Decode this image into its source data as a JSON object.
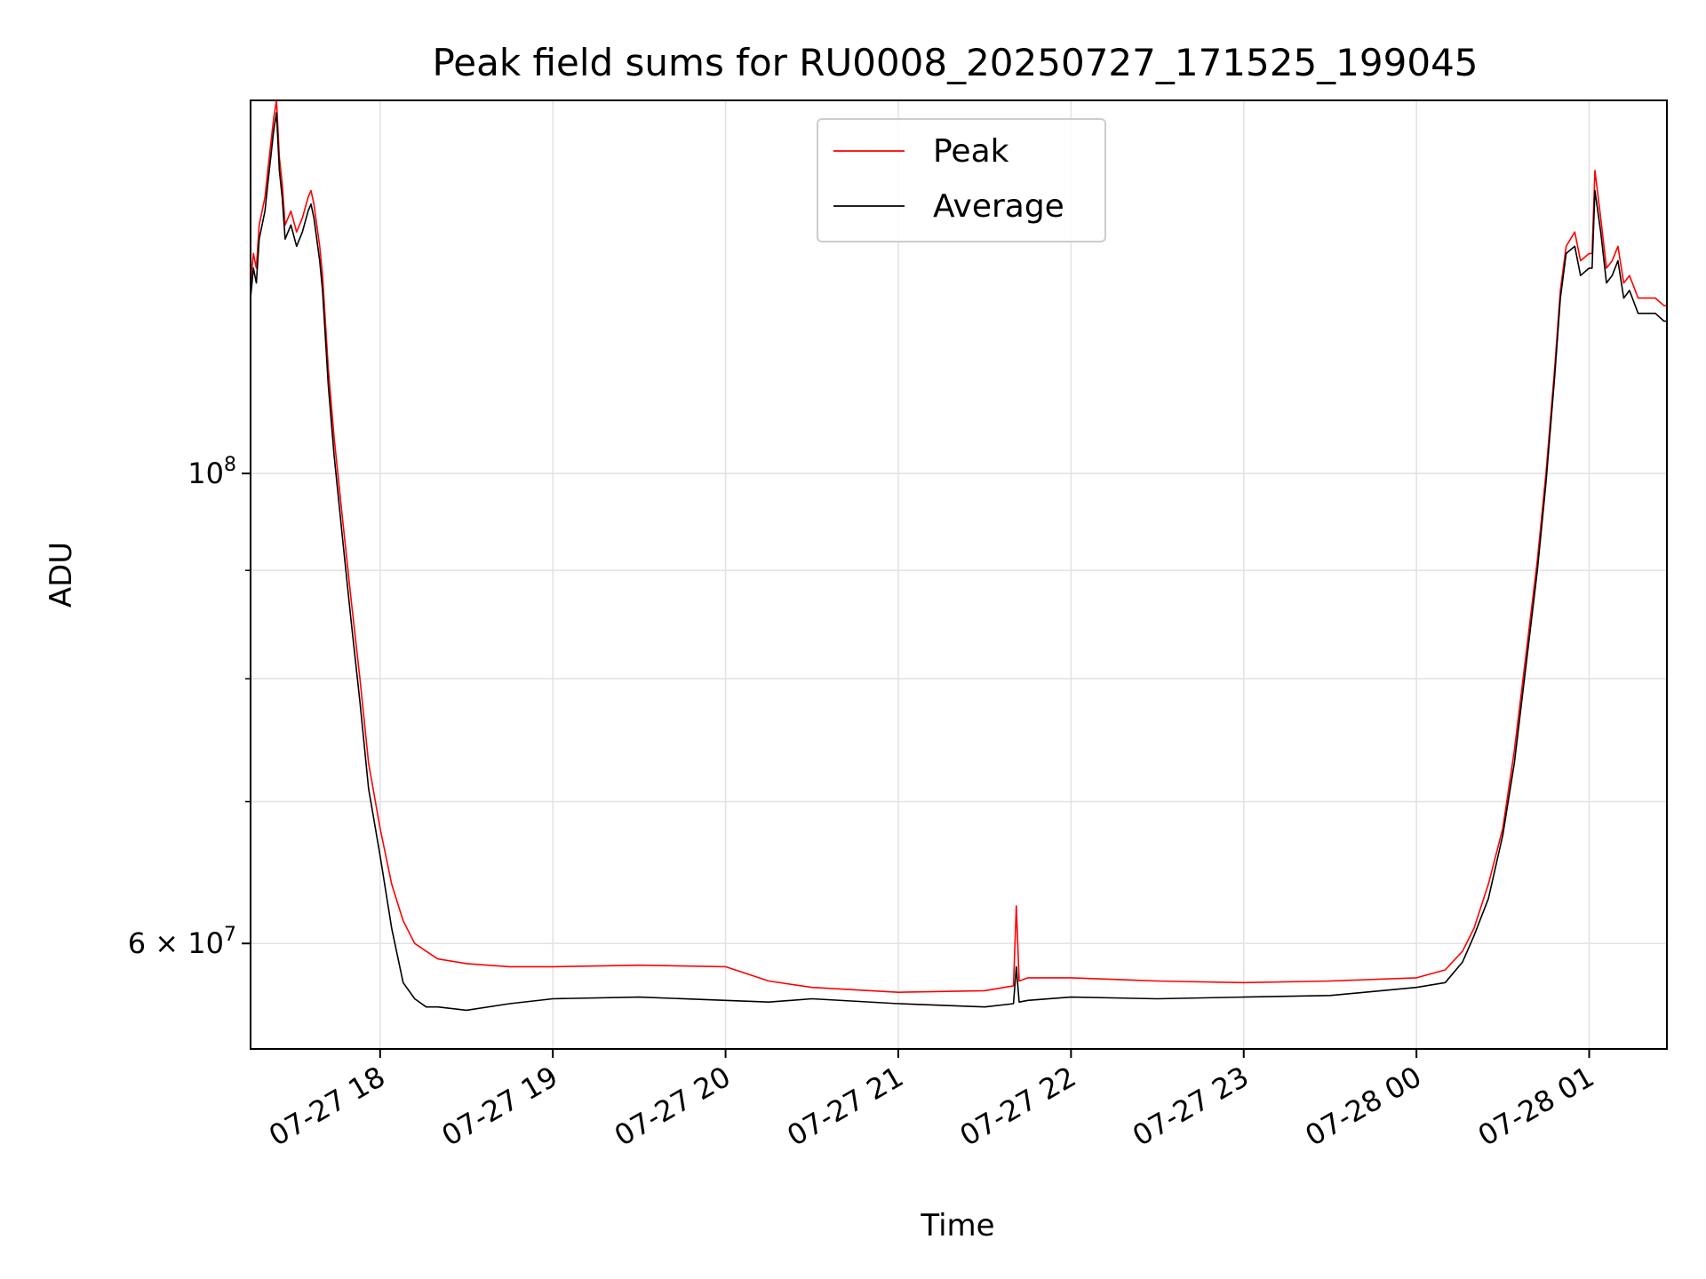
{
  "chart_data": {
    "type": "line",
    "title": "Peak field sums for RU0008_20250727_171525_199045",
    "xlabel": "Time",
    "ylabel": "ADU",
    "yscale": "log",
    "ylim": [
      53500000,
      150000000
    ],
    "xlim": [
      "2025-07-27 17:15",
      "2025-07-28 01:27"
    ],
    "grid": true,
    "legend": "upper center",
    "x_ticks": [
      {
        "value": "2025-07-27 18:00",
        "label": "07-27 18"
      },
      {
        "value": "2025-07-27 19:00",
        "label": "07-27 19"
      },
      {
        "value": "2025-07-27 20:00",
        "label": "07-27 20"
      },
      {
        "value": "2025-07-27 21:00",
        "label": "07-27 21"
      },
      {
        "value": "2025-07-27 22:00",
        "label": "07-27 22"
      },
      {
        "value": "2025-07-27 23:00",
        "label": "07-27 23"
      },
      {
        "value": "2025-07-28 00:00",
        "label": "07-28 00"
      },
      {
        "value": "2025-07-28 01:00",
        "label": "07-28 01"
      }
    ],
    "y_ticks": [
      {
        "value": 60000000,
        "mantissa": "6",
        "exponent": "7"
      },
      {
        "value": 100000000,
        "mantissa": "",
        "exponent": "8"
      }
    ],
    "y_minor_ticks": [
      70000000,
      80000000,
      90000000
    ],
    "series": [
      {
        "name": "Peak",
        "color": "#ff0000",
        "x": [
          "2025-07-27 17:15",
          "2025-07-27 17:16",
          "2025-07-27 17:17",
          "2025-07-27 17:18",
          "2025-07-27 17:20",
          "2025-07-27 17:21",
          "2025-07-27 17:23",
          "2025-07-27 17:24",
          "2025-07-27 17:25",
          "2025-07-27 17:26",
          "2025-07-27 17:27",
          "2025-07-27 17:29",
          "2025-07-27 17:31",
          "2025-07-27 17:33",
          "2025-07-27 17:35",
          "2025-07-27 17:36",
          "2025-07-27 17:37",
          "2025-07-27 17:39",
          "2025-07-27 17:40",
          "2025-07-27 17:42",
          "2025-07-27 17:44",
          "2025-07-27 17:47",
          "2025-07-27 17:50",
          "2025-07-27 17:53",
          "2025-07-27 17:56",
          "2025-07-27 18:00",
          "2025-07-27 18:04",
          "2025-07-27 18:08",
          "2025-07-27 18:12",
          "2025-07-27 18:16",
          "2025-07-27 18:20",
          "2025-07-27 18:30",
          "2025-07-27 18:45",
          "2025-07-27 19:00",
          "2025-07-27 19:30",
          "2025-07-27 20:00",
          "2025-07-27 20:15",
          "2025-07-27 20:30",
          "2025-07-27 21:00",
          "2025-07-27 21:30",
          "2025-07-27 21:40",
          "2025-07-27 21:41",
          "2025-07-27 21:42",
          "2025-07-27 21:45",
          "2025-07-27 22:00",
          "2025-07-27 22:30",
          "2025-07-27 23:00",
          "2025-07-27 23:30",
          "2025-07-28 00:00",
          "2025-07-28 00:10",
          "2025-07-28 00:16",
          "2025-07-28 00:20",
          "2025-07-28 00:25",
          "2025-07-28 00:30",
          "2025-07-28 00:34",
          "2025-07-28 00:38",
          "2025-07-28 00:42",
          "2025-07-28 00:45",
          "2025-07-28 00:48",
          "2025-07-28 00:50",
          "2025-07-28 00:52",
          "2025-07-28 00:55",
          "2025-07-28 00:57",
          "2025-07-28 01:00",
          "2025-07-28 01:01",
          "2025-07-28 01:02",
          "2025-07-28 01:04",
          "2025-07-28 01:06",
          "2025-07-28 01:08",
          "2025-07-28 01:10",
          "2025-07-28 01:12",
          "2025-07-28 01:14",
          "2025-07-28 01:17",
          "2025-07-28 01:20",
          "2025-07-28 01:23",
          "2025-07-28 01:26",
          "2025-07-28 01:27"
        ],
        "y": [
          123000000,
          127000000,
          125000000,
          131000000,
          135000000,
          139000000,
          147000000,
          150000000,
          141000000,
          137000000,
          131000000,
          133000000,
          130000000,
          132000000,
          135000000,
          136000000,
          134000000,
          128000000,
          124000000,
          112000000,
          104000000,
          95000000,
          87000000,
          80000000,
          73000000,
          68000000,
          64000000,
          61500000,
          60000000,
          59500000,
          59000000,
          58700000,
          58500000,
          58500000,
          58600000,
          58500000,
          57600000,
          57200000,
          56900000,
          57000000,
          57300000,
          62500000,
          57600000,
          57800000,
          57800000,
          57600000,
          57500000,
          57600000,
          57800000,
          58300000,
          59500000,
          61000000,
          64000000,
          68000000,
          74000000,
          82000000,
          91000000,
          100000000,
          112000000,
          122000000,
          128000000,
          130000000,
          126000000,
          127000000,
          127000000,
          139000000,
          132000000,
          125000000,
          126000000,
          128000000,
          123000000,
          124000000,
          121000000,
          121000000,
          121000000,
          120000000,
          120000000
        ]
      },
      {
        "name": "Average",
        "color": "#000000",
        "x": [
          "2025-07-27 17:15",
          "2025-07-27 17:16",
          "2025-07-27 17:17",
          "2025-07-27 17:18",
          "2025-07-27 17:20",
          "2025-07-27 17:21",
          "2025-07-27 17:23",
          "2025-07-27 17:24",
          "2025-07-27 17:25",
          "2025-07-27 17:26",
          "2025-07-27 17:27",
          "2025-07-27 17:29",
          "2025-07-27 17:31",
          "2025-07-27 17:33",
          "2025-07-27 17:35",
          "2025-07-27 17:36",
          "2025-07-27 17:37",
          "2025-07-27 17:39",
          "2025-07-27 17:40",
          "2025-07-27 17:42",
          "2025-07-27 17:44",
          "2025-07-27 17:47",
          "2025-07-27 17:50",
          "2025-07-27 17:53",
          "2025-07-27 17:56",
          "2025-07-27 18:00",
          "2025-07-27 18:04",
          "2025-07-27 18:08",
          "2025-07-27 18:12",
          "2025-07-27 18:16",
          "2025-07-27 18:20",
          "2025-07-27 18:30",
          "2025-07-27 18:45",
          "2025-07-27 19:00",
          "2025-07-27 19:30",
          "2025-07-27 20:00",
          "2025-07-27 20:15",
          "2025-07-27 20:30",
          "2025-07-27 21:00",
          "2025-07-27 21:30",
          "2025-07-27 21:40",
          "2025-07-27 21:41",
          "2025-07-27 21:42",
          "2025-07-27 21:45",
          "2025-07-27 22:00",
          "2025-07-27 22:30",
          "2025-07-27 23:00",
          "2025-07-27 23:30",
          "2025-07-28 00:00",
          "2025-07-28 00:10",
          "2025-07-28 00:16",
          "2025-07-28 00:20",
          "2025-07-28 00:25",
          "2025-07-28 00:30",
          "2025-07-28 00:34",
          "2025-07-28 00:38",
          "2025-07-28 00:42",
          "2025-07-28 00:45",
          "2025-07-28 00:48",
          "2025-07-28 00:50",
          "2025-07-28 00:52",
          "2025-07-28 00:55",
          "2025-07-28 00:57",
          "2025-07-28 01:00",
          "2025-07-28 01:01",
          "2025-07-28 01:02",
          "2025-07-28 01:04",
          "2025-07-28 01:06",
          "2025-07-28 01:08",
          "2025-07-28 01:10",
          "2025-07-28 01:12",
          "2025-07-28 01:14",
          "2025-07-28 01:17",
          "2025-07-28 01:20",
          "2025-07-28 01:23",
          "2025-07-28 01:26",
          "2025-07-28 01:27"
        ],
        "y": [
          121000000,
          125000000,
          123000000,
          129000000,
          133000000,
          137000000,
          145000000,
          148000000,
          139000000,
          135000000,
          129000000,
          131000000,
          128000000,
          130000000,
          133000000,
          134000000,
          132000000,
          126000000,
          122000000,
          110000000,
          102000000,
          93000000,
          85000000,
          78000000,
          71000000,
          66000000,
          61000000,
          57500000,
          56500000,
          56000000,
          56000000,
          55800000,
          56200000,
          56500000,
          56600000,
          56400000,
          56300000,
          56500000,
          56200000,
          56000000,
          56200000,
          58500000,
          56300000,
          56400000,
          56600000,
          56500000,
          56600000,
          56700000,
          57200000,
          57500000,
          58800000,
          60500000,
          63000000,
          67500000,
          73000000,
          81000000,
          90000000,
          99000000,
          111000000,
          121000000,
          127000000,
          128000000,
          124000000,
          125000000,
          125000000,
          136000000,
          130000000,
          123000000,
          124000000,
          126000000,
          121000000,
          122000000,
          119000000,
          119000000,
          119000000,
          118000000,
          118000000
        ]
      }
    ]
  }
}
